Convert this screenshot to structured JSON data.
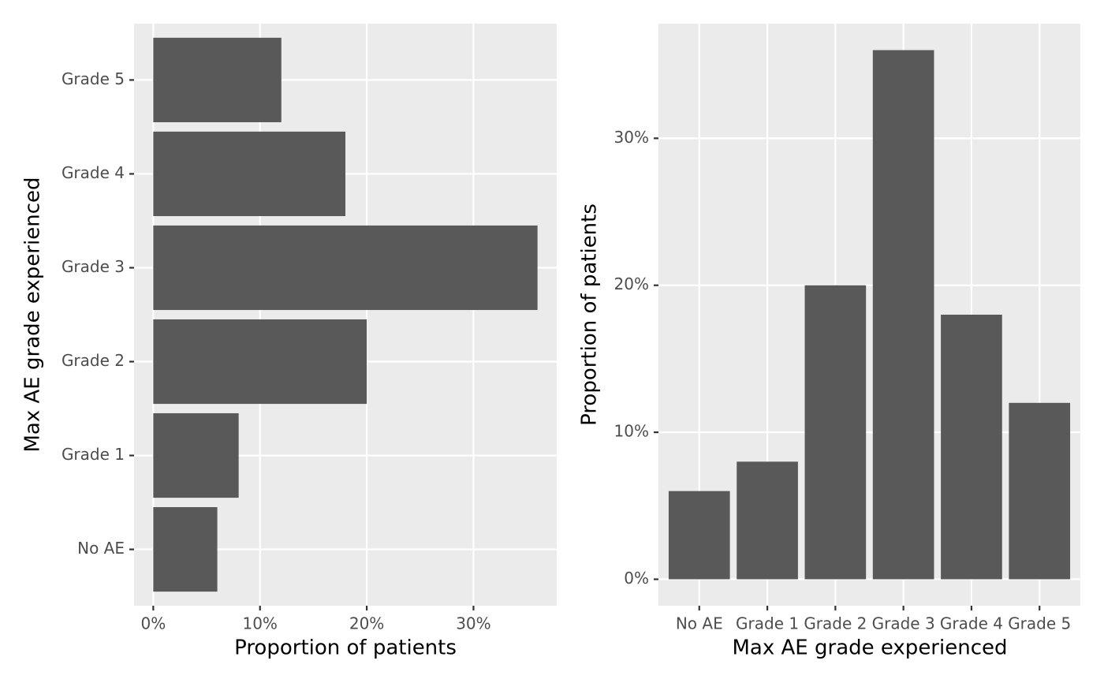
{
  "chart_data": [
    {
      "type": "bar",
      "orientation": "horizontal",
      "x_label": "Proportion of patients",
      "y_label": "Max AE grade experienced",
      "categories": [
        "No AE",
        "Grade 1",
        "Grade 2",
        "Grade 3",
        "Grade 4",
        "Grade 5"
      ],
      "values": [
        6,
        8,
        20,
        36,
        18,
        12
      ],
      "color": "#595959",
      "background": "#ebebeb",
      "grid": true,
      "xlim": [
        -1.8,
        37.8
      ],
      "xticks": [
        {
          "value": 0,
          "label": "0%"
        },
        {
          "value": 10,
          "label": "10%"
        },
        {
          "value": 20,
          "label": "20%"
        },
        {
          "value": 30,
          "label": "30%"
        }
      ]
    },
    {
      "type": "bar",
      "orientation": "vertical",
      "x_label": "Max AE grade experienced",
      "y_label": "Proportion of patients",
      "categories": [
        "No AE",
        "Grade 1",
        "Grade 2",
        "Grade 3",
        "Grade 4",
        "Grade 5"
      ],
      "values": [
        6,
        8,
        20,
        36,
        18,
        12
      ],
      "color": "#595959",
      "background": "#ebebeb",
      "grid": true,
      "ylim": [
        -1.8,
        37.8
      ],
      "yticks": [
        {
          "value": 0,
          "label": "0%"
        },
        {
          "value": 10,
          "label": "10%"
        },
        {
          "value": 20,
          "label": "20%"
        },
        {
          "value": 30,
          "label": "30%"
        }
      ]
    }
  ]
}
